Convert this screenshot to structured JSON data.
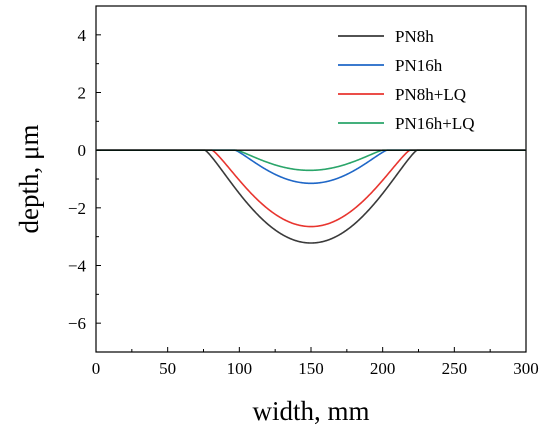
{
  "chart_data": {
    "type": "line",
    "title": "",
    "xlabel": "width, mm",
    "ylabel": "depth, μm",
    "xlim": [
      0,
      300
    ],
    "ylim": [
      -7,
      5
    ],
    "xticks": [
      0,
      50,
      100,
      150,
      200,
      250,
      300
    ],
    "yticks": [
      -6,
      -4,
      -2,
      0,
      2,
      4
    ],
    "ytick_labels": [
      "−6",
      "−4",
      "−2",
      "0",
      "2",
      "4"
    ],
    "grid": false,
    "legend_position": "top-right",
    "zero_line": true,
    "series": [
      {
        "name": "PN8h",
        "color": "#3a3a3a",
        "x_start": 76,
        "x_end": 224,
        "min_depth": -3.22
      },
      {
        "name": "PN16h",
        "color": "#1f67c7",
        "x_start": 97,
        "x_end": 203,
        "min_depth": -1.15
      },
      {
        "name": "PN8h+LQ",
        "color": "#e8352f",
        "x_start": 81,
        "x_end": 219,
        "min_depth": -2.65
      },
      {
        "name": "PN16h+LQ",
        "color": "#2aa56a",
        "x_start": 98,
        "x_end": 200,
        "min_depth": -0.7
      }
    ]
  }
}
